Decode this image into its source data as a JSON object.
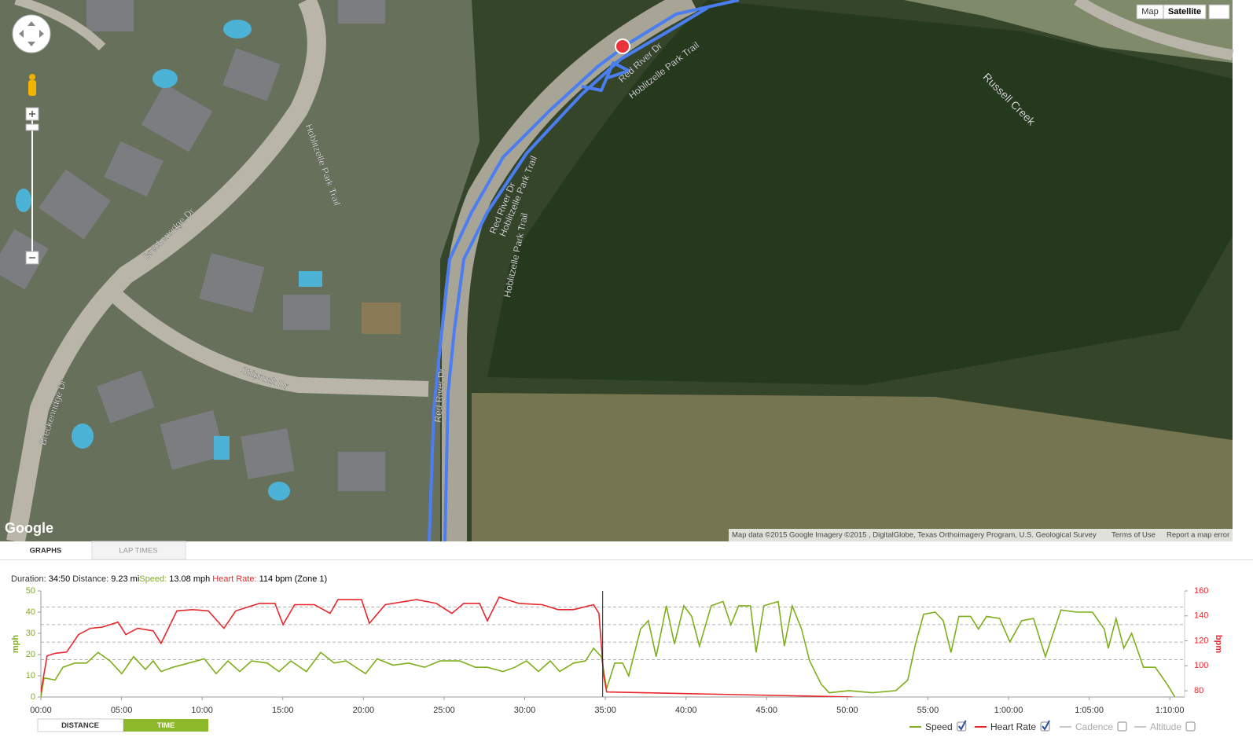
{
  "map": {
    "labels": [
      "Breckenridge Dr",
      "Breckenridge Dr",
      "Shiprock Dr",
      "Hoblitzelle Park Trail",
      "Hoblitzelle Park Trail",
      "Hoblitzelle Park Trail",
      "Hoblitzelle Park Trail",
      "Red River Dr",
      "Red River Dr",
      "Red River Dr",
      "Russell Creek"
    ],
    "map_button": "Map",
    "satellite_button": "Satellite",
    "logo": "Google",
    "attribution": "Map data ©2015 Google Imagery ©2015 , DigitalGlobe, Texas Orthoimagery Program, U.S. Geological Survey",
    "terms": "Terms of Use",
    "report": "Report a map error"
  },
  "tabs": [
    "GRAPHS",
    "LAP TIMES"
  ],
  "stats": {
    "duration_label": "Duration:",
    "duration": "34:50",
    "distance_label": "Distance:",
    "distance": "9.23 mi",
    "speed_label": "Speed:",
    "speed": "13.08 mph",
    "heart_rate_label": "Heart Rate:",
    "heart_rate": "114 bpm (Zone 1)"
  },
  "buttons": [
    "DISTANCE",
    "TIME"
  ],
  "chart_data": {
    "type": "line",
    "ylabel": "mph",
    "y2label": "bpm",
    "xlim": [
      0,
      4255
    ],
    "xticks": [
      {
        "value": 0,
        "label": "00:00"
      },
      {
        "value": 300,
        "label": "05:00"
      },
      {
        "value": 600,
        "label": "10:00"
      },
      {
        "value": 900,
        "label": "15:00"
      },
      {
        "value": 1200,
        "label": "20:00"
      },
      {
        "value": 1500,
        "label": "25:00"
      },
      {
        "value": 1800,
        "label": "30:00"
      },
      {
        "value": 2100,
        "label": "35:00"
      },
      {
        "value": 2400,
        "label": "40:00"
      },
      {
        "value": 2700,
        "label": "45:00"
      },
      {
        "value": 3000,
        "label": "50:00"
      },
      {
        "value": 3300,
        "label": "55:00"
      },
      {
        "value": 3600,
        "label": "1:00:00"
      },
      {
        "value": 3900,
        "label": "1:05:00"
      },
      {
        "value": 4200,
        "label": "1:10:00"
      }
    ],
    "ylim": [
      0,
      50
    ],
    "yticks": [
      0,
      10,
      20,
      30,
      40,
      50
    ],
    "y2lim": [
      75,
      160
    ],
    "y2ticks": [
      80,
      100,
      120,
      140,
      160
    ],
    "hr_zones": [
      105,
      119,
      133,
      147
    ],
    "cursor_x": 2090,
    "series": [
      {
        "name": "Speed",
        "color": "#7fae1b",
        "enabled": true,
        "x": [
          0,
          12,
          53,
          82,
          126,
          170,
          213,
          257,
          301,
          345,
          389,
          418,
          447,
          491,
          550,
          608,
          652,
          696,
          740,
          784,
          842,
          886,
          930,
          988,
          1041,
          1091,
          1135,
          1208,
          1251,
          1310,
          1368,
          1427,
          1485,
          1558,
          1617,
          1661,
          1719,
          1763,
          1807,
          1851,
          1895,
          1930,
          1982,
          2026,
          2056,
          2085,
          2105,
          2135,
          2164,
          2187,
          2231,
          2260,
          2289,
          2327,
          2357,
          2392,
          2421,
          2450,
          2494,
          2538,
          2567,
          2596,
          2640,
          2661,
          2690,
          2743,
          2766,
          2795,
          2830,
          2860,
          2903,
          2933,
          3006,
          3094,
          3181,
          3225,
          3254,
          3284,
          3327,
          3357,
          3386,
          3415,
          3459,
          3488,
          3518,
          3567,
          3605,
          3649,
          3693,
          3737,
          3795,
          3854,
          3912,
          3956,
          3971,
          4000,
          4029,
          4058,
          4102,
          4146,
          4190,
          4219
        ],
        "values": [
          0,
          9,
          8,
          14,
          16,
          16,
          21,
          17,
          11,
          19,
          13,
          17,
          12,
          14,
          16,
          18,
          11,
          17,
          12,
          17,
          16,
          12,
          17,
          12,
          21,
          16,
          17,
          11,
          18,
          15,
          16,
          14,
          17,
          17,
          14,
          14,
          12,
          14,
          17,
          12,
          17,
          12,
          16,
          17,
          23,
          19,
          4,
          16,
          16,
          10,
          32,
          36,
          19,
          43,
          25,
          43,
          38,
          24,
          43,
          45,
          34,
          43,
          43,
          21,
          43,
          45,
          24,
          43,
          32,
          17,
          6,
          2,
          3,
          2,
          3,
          8,
          25,
          39,
          40,
          36,
          21,
          38,
          38,
          32,
          38,
          37,
          26,
          36,
          37,
          19,
          41,
          40,
          40,
          32,
          23,
          37,
          23,
          30,
          14,
          14,
          6,
          0
        ]
      },
      {
        "name": "Heart Rate",
        "color": "#e8262b",
        "enabled": true,
        "axis": "y2",
        "x": [
          0,
          23,
          53,
          96,
          140,
          184,
          228,
          287,
          316,
          360,
          418,
          447,
          506,
          564,
          623,
          681,
          725,
          813,
          871,
          901,
          944,
          1018,
          1076,
          1105,
          1193,
          1222,
          1281,
          1398,
          1471,
          1529,
          1573,
          1632,
          1661,
          1705,
          1778,
          1865,
          1924,
          1982,
          2056,
          2076,
          2094,
          2105,
          3020
        ],
        "values": [
          79,
          108,
          110,
          111,
          125,
          130,
          131,
          135,
          125,
          130,
          128,
          118,
          144,
          145,
          144,
          130,
          144,
          150,
          150,
          133,
          149,
          149,
          142,
          153,
          153,
          134,
          149,
          153,
          150,
          142,
          150,
          150,
          136,
          155,
          150,
          149,
          145,
          145,
          149,
          142,
          92,
          79,
          75
        ]
      },
      {
        "name": "Cadence",
        "color": "#c8c8c8",
        "enabled": false,
        "x": [],
        "values": []
      },
      {
        "name": "Altitude",
        "color": "#c8c8c8",
        "enabled": false,
        "x": [],
        "values": []
      }
    ]
  }
}
